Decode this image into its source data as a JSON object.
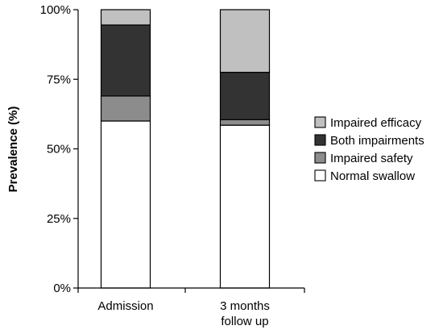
{
  "chart_data": {
    "type": "bar",
    "stacked": true,
    "ylabel": "Prevalence (%)",
    "ylim": [
      0,
      100
    ],
    "yticks": [
      "0%",
      "25%",
      "50%",
      "75%",
      "100%"
    ],
    "categories": [
      [
        "Admission"
      ],
      [
        "3 months",
        "follow up"
      ]
    ],
    "series": [
      {
        "name": "Normal swallow",
        "color": "#ffffff",
        "values": [
          60,
          58.5
        ]
      },
      {
        "name": "Impaired safety",
        "color": "#8c8c8c",
        "values": [
          9,
          2
        ]
      },
      {
        "name": "Both impairments",
        "color": "#333333",
        "values": [
          25.5,
          17
        ]
      },
      {
        "name": "Impaired efficacy",
        "color": "#c0c0c0",
        "values": [
          5.5,
          22.5
        ]
      }
    ],
    "legend_position": "right",
    "grid": false
  }
}
